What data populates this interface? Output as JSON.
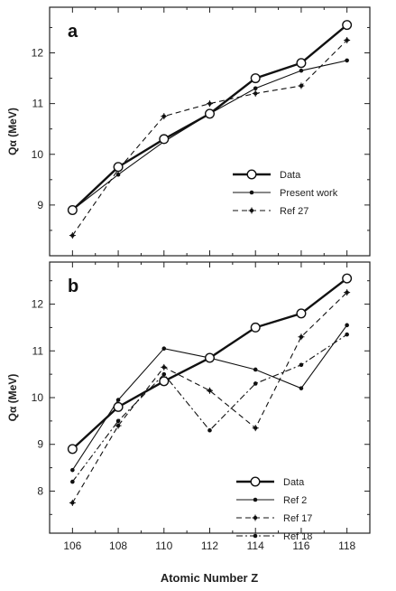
{
  "chart_data": [
    {
      "type": "line",
      "panel_label": "a",
      "xlabel": "",
      "ylabel": "Qα (MeV)",
      "x": [
        106,
        108,
        110,
        112,
        114,
        116,
        118
      ],
      "xlim": [
        105,
        119
      ],
      "ylim": [
        8.0,
        12.9
      ],
      "yticks": [
        9,
        10,
        11,
        12
      ],
      "xticks": [
        106,
        108,
        110,
        112,
        114,
        116,
        118
      ],
      "legend_position": "bottom-right",
      "series": [
        {
          "name": "Data",
          "style": "thick-open-circle",
          "color": "#111111",
          "values": [
            8.9,
            9.75,
            10.3,
            10.8,
            11.5,
            11.8,
            12.55
          ]
        },
        {
          "name": "Present work",
          "style": "thin-dot",
          "color": "#111111",
          "values": [
            8.9,
            9.6,
            10.25,
            10.8,
            11.3,
            11.65,
            11.85
          ]
        },
        {
          "name": "Ref 27",
          "style": "dashed-dot",
          "color": "#111111",
          "values": [
            8.4,
            9.7,
            10.75,
            11.0,
            11.2,
            11.35,
            12.25
          ]
        }
      ]
    },
    {
      "type": "line",
      "panel_label": "b",
      "xlabel": "Atomic Number Z",
      "ylabel": "Qα (MeV)",
      "x": [
        106,
        108,
        110,
        112,
        114,
        116,
        118
      ],
      "xlim": [
        105,
        119
      ],
      "ylim": [
        7.1,
        12.9
      ],
      "yticks": [
        8,
        9,
        10,
        11,
        12
      ],
      "xticks": [
        106,
        108,
        110,
        112,
        114,
        116,
        118
      ],
      "legend_position": "bottom-right",
      "series": [
        {
          "name": "Data",
          "style": "thick-open-circle",
          "color": "#111111",
          "values": [
            8.9,
            9.8,
            10.35,
            10.85,
            11.5,
            11.8,
            12.55
          ]
        },
        {
          "name": "Ref 2",
          "style": "thin-dot",
          "color": "#111111",
          "values": [
            8.45,
            9.95,
            11.05,
            10.85,
            10.6,
            10.2,
            11.55
          ]
        },
        {
          "name": "Ref 17",
          "style": "dashed-dot",
          "color": "#111111",
          "values": [
            7.75,
            9.4,
            10.65,
            10.15,
            9.35,
            11.3,
            12.25
          ]
        },
        {
          "name": "Ref 18",
          "style": "dashdot-dot",
          "color": "#111111",
          "values": [
            8.2,
            9.5,
            10.5,
            9.3,
            10.3,
            10.7,
            11.35
          ]
        }
      ]
    }
  ]
}
